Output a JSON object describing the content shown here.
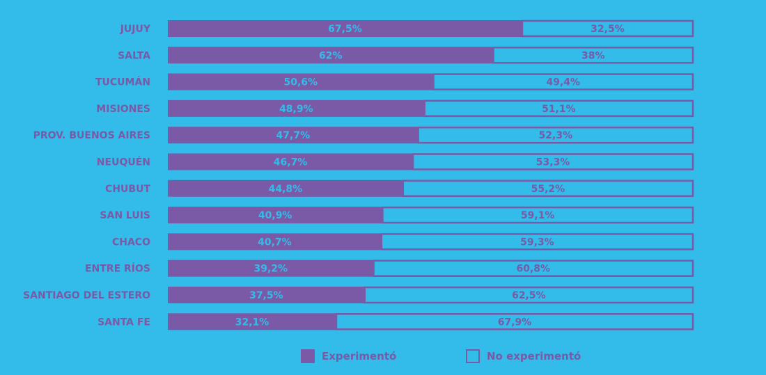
{
  "colors": {
    "background": "#33bbea",
    "experimento": "#7a5aa6",
    "no_experimento": "#33bbea",
    "label": "#7a5aa6"
  },
  "legend": {
    "items": [
      {
        "label": "Experimentó",
        "style": "filled"
      },
      {
        "label": "No experimentó",
        "style": "outlined"
      }
    ]
  },
  "chart_data": {
    "type": "bar",
    "orientation": "horizontal",
    "stacked": "100%",
    "categories": [
      "JUJUY",
      "SALTA",
      "TUCUMÁN",
      "MISIONES",
      "PROV. BUENOS AIRES",
      "NEUQUÉN",
      "CHUBUT",
      "SAN LUIS",
      "CHACO",
      "ENTRE RÍOS",
      "SANTIAGO DEL ESTERO",
      "SANTA FE"
    ],
    "series": [
      {
        "name": "Experimentó",
        "values": [
          67.5,
          62,
          50.6,
          48.9,
          47.7,
          46.7,
          44.8,
          40.9,
          40.7,
          39.2,
          37.5,
          32.1
        ],
        "labels": [
          "67,5%",
          "62%",
          "50,6%",
          "48,9%",
          "47,7%",
          "46,7%",
          "44,8%",
          "40,9%",
          "40,7%",
          "39,2%",
          "37,5%",
          "32,1%"
        ]
      },
      {
        "name": "No experimentó",
        "values": [
          32.5,
          38,
          49.4,
          51.1,
          52.3,
          53.3,
          55.2,
          59.1,
          59.3,
          60.8,
          62.5,
          67.9
        ],
        "labels": [
          "32,5%",
          "38%",
          "49,4%",
          "51,1%",
          "52,3%",
          "53,3%",
          "55,2%",
          "59,1%",
          "59,3%",
          "60,8%",
          "62,5%",
          "67,9%"
        ]
      }
    ],
    "xlim": [
      0,
      100
    ],
    "grid": false,
    "legend_position": "bottom-center"
  }
}
